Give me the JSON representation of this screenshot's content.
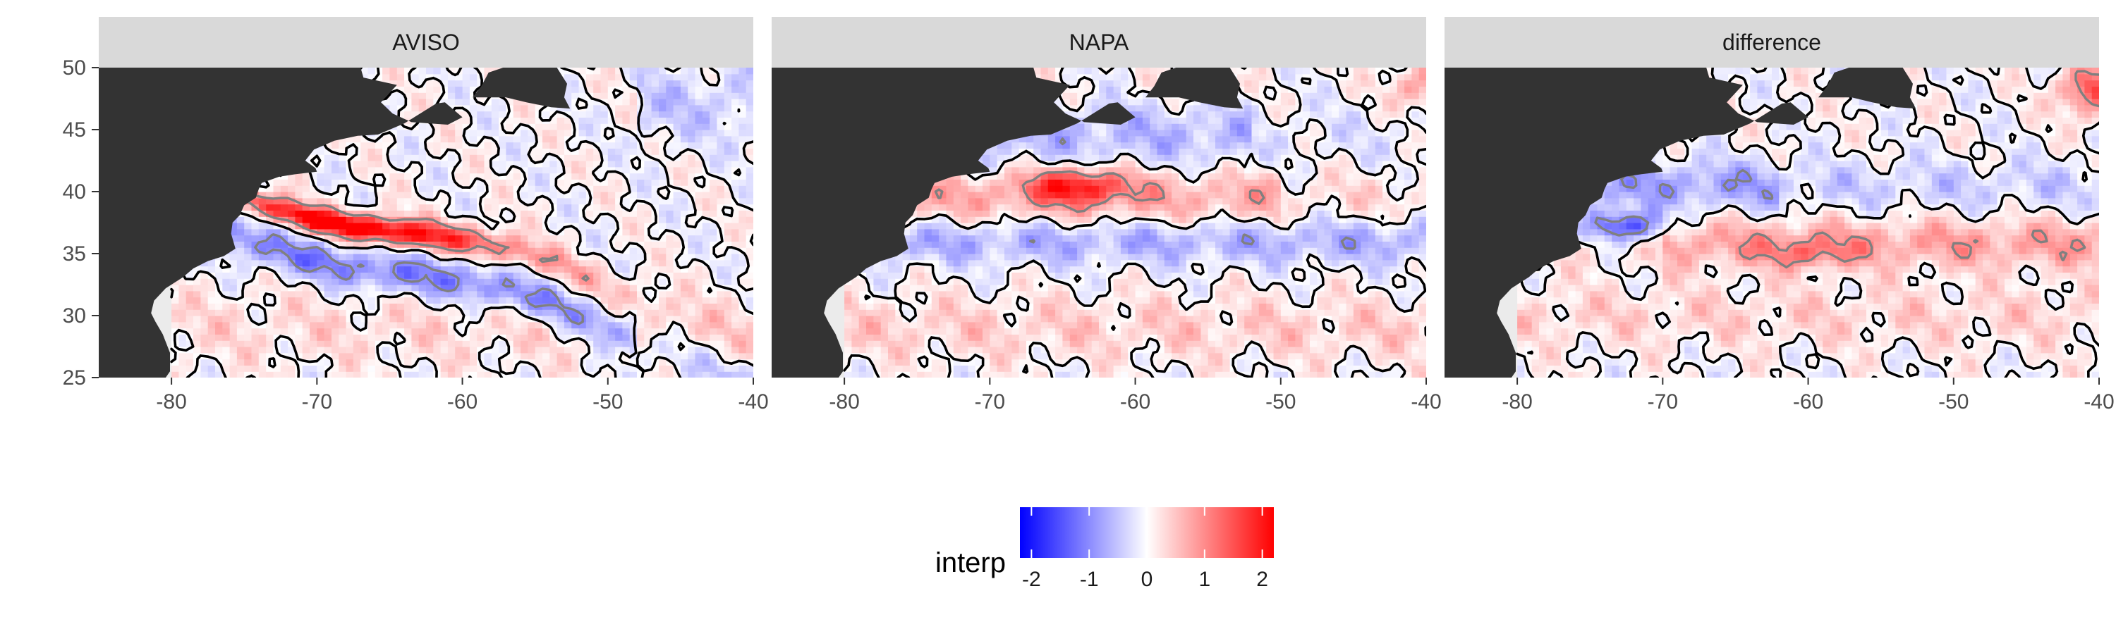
{
  "chart_data": {
    "type": "heatmap",
    "x_ticks": [
      -80,
      -70,
      -60,
      -50,
      -40
    ],
    "y_ticks": [
      25,
      30,
      35,
      40,
      45,
      50
    ],
    "xlim": [
      -85,
      -40
    ],
    "ylim": [
      25,
      50
    ],
    "panels": [
      {
        "title": "AVISO"
      },
      {
        "title": "NAPA"
      },
      {
        "title": "difference"
      }
    ],
    "legend": {
      "title": "interp",
      "ticks": [
        -2,
        -1,
        0,
        1,
        2
      ],
      "range": [
        -2.2,
        2.2
      ],
      "colors": {
        "low": "#0000ff",
        "mid": "#ffffff",
        "high": "#ff0000"
      },
      "position": "bottom"
    },
    "colors": {
      "land": "#333333",
      "strip": "#d9d9d9",
      "panel_background": "#ebebeb",
      "contour_major": "#000000",
      "contour_minor": "#808080"
    }
  }
}
